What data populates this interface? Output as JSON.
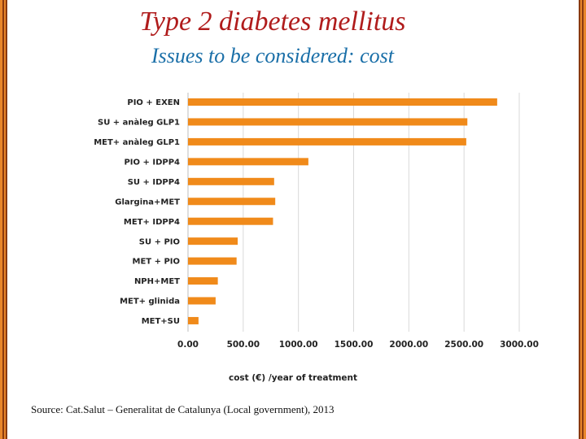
{
  "slide": {
    "title": "Type 2 diabetes mellitus",
    "subtitle": "Issues to be considered: cost",
    "source": "Source: Cat.Salut – Generalitat de Catalunya (Local government), 2013"
  },
  "colors": {
    "bar": "#f08a1a",
    "title": "#b01c1c",
    "subtitle": "#1a6fa8",
    "border": "#e8862a",
    "grid": "#d9d9d9",
    "label": "#222222"
  },
  "chart_data": {
    "type": "bar",
    "orientation": "horizontal",
    "categories": [
      "PIO + EXEN",
      "SU + anàleg GLP1",
      "MET+ anàleg GLP1",
      "PIO + IDPP4",
      "SU + IDPP4",
      "Glargina+MET",
      "MET+ IDPP4",
      "SU + PIO",
      "MET + PIO",
      "NPH+MET",
      "MET+ glinida",
      "MET+SU"
    ],
    "values": [
      2800,
      2530,
      2520,
      1090,
      780,
      790,
      770,
      450,
      440,
      270,
      250,
      95
    ],
    "xlabel": "cost (€) /year of treatment",
    "ylabel": "",
    "xlim": [
      0,
      3000
    ],
    "xticks": [
      0,
      500,
      1000,
      1500,
      2000,
      2500,
      3000
    ],
    "xtick_labels": [
      "0.00",
      "500.00",
      "1000.00",
      "1500.00",
      "2000.00",
      "2500.00",
      "3000.00"
    ],
    "grid": true,
    "legend": "none"
  }
}
